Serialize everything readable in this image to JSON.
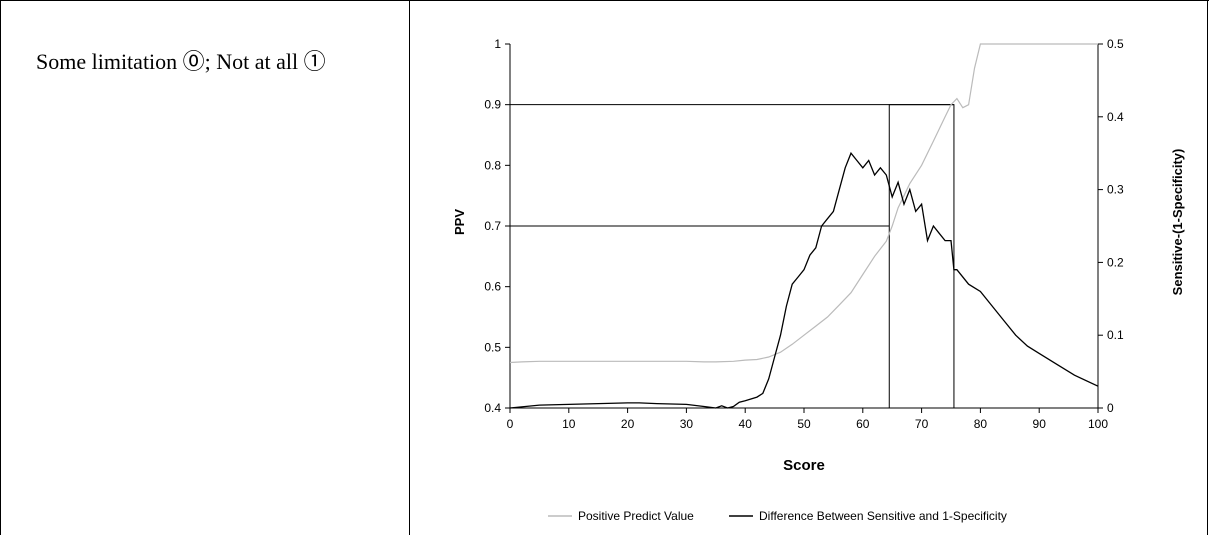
{
  "left_cell": {
    "text": "Some limitation ⓪; Not at all ①"
  },
  "chart_data": {
    "type": "line",
    "xlabel": "Score",
    "ylabel": "PPV",
    "y2label": "Sensitive-(1-Specificity)",
    "xlim": [
      0,
      100
    ],
    "xticks": [
      0,
      10,
      20,
      30,
      40,
      50,
      60,
      70,
      80,
      90,
      100
    ],
    "ylim": [
      0.4,
      1.0
    ],
    "yticks": [
      0.4,
      0.5,
      0.6,
      0.7,
      0.8,
      0.9,
      1.0
    ],
    "y2lim": [
      0,
      0.5
    ],
    "y2ticks": [
      0,
      0.1,
      0.2,
      0.3,
      0.4,
      0.5
    ],
    "grid": false,
    "legend_position": "bottom",
    "series": [
      {
        "name": "Positive Predict Value",
        "axis": "left",
        "color": "#bbbbbb",
        "x": [
          0,
          2,
          5,
          10,
          20,
          30,
          33,
          35,
          38,
          40,
          42,
          44,
          46,
          48,
          50,
          52,
          54,
          56,
          58,
          60,
          62,
          64,
          65,
          66,
          67,
          68,
          70,
          72,
          74,
          75,
          76,
          77,
          78,
          79,
          80,
          85,
          90,
          100
        ],
        "y": [
          0.475,
          0.476,
          0.477,
          0.477,
          0.477,
          0.477,
          0.476,
          0.476,
          0.477,
          0.479,
          0.48,
          0.484,
          0.492,
          0.505,
          0.52,
          0.535,
          0.55,
          0.57,
          0.59,
          0.62,
          0.65,
          0.675,
          0.7,
          0.73,
          0.75,
          0.77,
          0.8,
          0.84,
          0.88,
          0.9,
          0.91,
          0.895,
          0.9,
          0.96,
          1.0,
          1.0,
          1.0,
          1.0
        ]
      },
      {
        "name": "Difference Between Sensitive and 1-Specificity",
        "axis": "right",
        "color": "#000000",
        "x": [
          0,
          5,
          10,
          15,
          20,
          22,
          25,
          30,
          33,
          35,
          36,
          37,
          38,
          39,
          40,
          42,
          43,
          44,
          45,
          46,
          47,
          48,
          49,
          50,
          51,
          52,
          53,
          54,
          55,
          56,
          57,
          58,
          59,
          60,
          61,
          62,
          63,
          64,
          65,
          66,
          67,
          68,
          69,
          70,
          71,
          72,
          73,
          74,
          75,
          75.5,
          76,
          78,
          80,
          82,
          84,
          86,
          88,
          90,
          93,
          96,
          100
        ],
        "y": [
          0,
          0.004,
          0.005,
          0.006,
          0.007,
          0.007,
          0.006,
          0.005,
          0.002,
          0.0,
          0.003,
          0.0,
          0.002,
          0.008,
          0.01,
          0.015,
          0.02,
          0.04,
          0.07,
          0.1,
          0.14,
          0.17,
          0.18,
          0.19,
          0.21,
          0.22,
          0.25,
          0.26,
          0.27,
          0.3,
          0.33,
          0.35,
          0.34,
          0.33,
          0.34,
          0.32,
          0.33,
          0.32,
          0.29,
          0.31,
          0.28,
          0.3,
          0.27,
          0.28,
          0.23,
          0.25,
          0.24,
          0.23,
          0.23,
          0.19,
          0.19,
          0.17,
          0.16,
          0.14,
          0.12,
          0.1,
          0.085,
          0.075,
          0.06,
          0.045,
          0.03
        ]
      }
    ],
    "reference_lines": [
      {
        "kind": "horizontal",
        "axis": "left",
        "y": 0.9,
        "x_from": 0,
        "x_to": 75.5
      },
      {
        "kind": "horizontal",
        "axis": "left",
        "y": 0.7,
        "x_from": 0,
        "x_to": 64.5
      },
      {
        "kind": "rectangle",
        "x_from": 64.5,
        "x_to": 75.5,
        "y_from": 0.4,
        "y_to": 0.9
      }
    ]
  }
}
